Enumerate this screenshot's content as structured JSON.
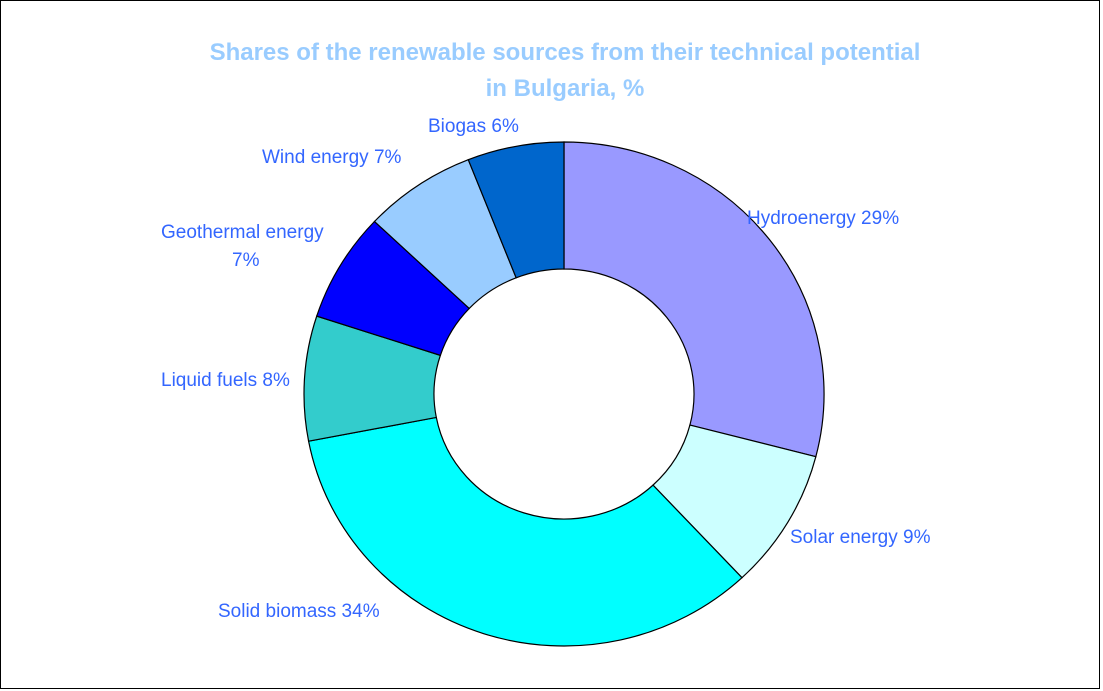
{
  "chart_data": {
    "type": "pie",
    "subtype": "doughnut",
    "title": "Shares of the renewable sources from their technical potential in Bulgaria, %",
    "title_lines": [
      "Shares of the renewable sources from their technical potential",
      "in Bulgaria, %"
    ],
    "unit": "%",
    "slices": [
      {
        "name": "Hydroenergy",
        "value": 29,
        "label": "Hydroenergy 29%",
        "color": "#9999ff"
      },
      {
        "name": "Solar energy",
        "value": 9,
        "label": "Solar energy 9%",
        "color": "#ccffff"
      },
      {
        "name": "Solid biomass",
        "value": 34,
        "label": "Solid biomass 34%",
        "color": "#00ffff"
      },
      {
        "name": "Liquid fuels",
        "value": 8,
        "label": "Liquid fuels 8%",
        "color": "#33cccc"
      },
      {
        "name": "Geothermal energy",
        "value": 7,
        "label_lines": [
          "Geothermal energy",
          "7%"
        ],
        "color": "#0000ff"
      },
      {
        "name": "Wind energy",
        "value": 7,
        "label": "Wind energy 7%",
        "color": "#99ccff"
      },
      {
        "name": "Biogas",
        "value": 6,
        "label": "Biogas 6%",
        "color": "#0066cc"
      }
    ],
    "legend": "none"
  }
}
